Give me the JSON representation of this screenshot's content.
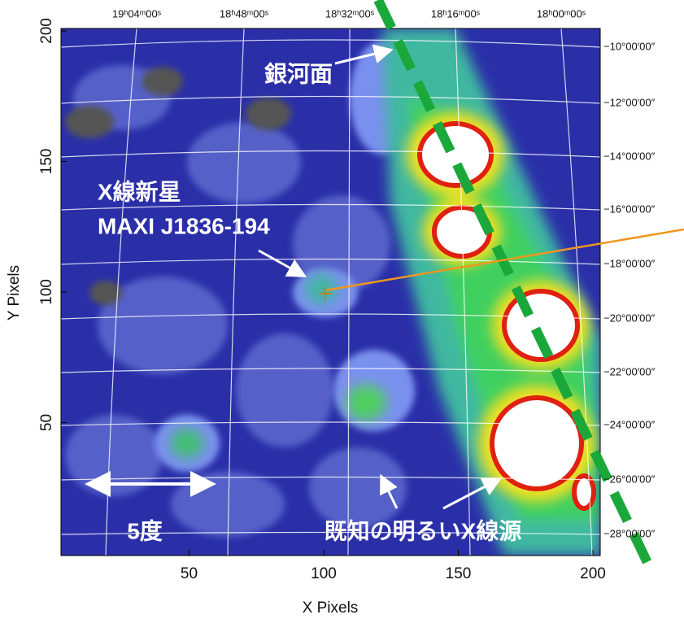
{
  "chart_data": {
    "type": "image",
    "xlabel": "X Pixels",
    "ylabel": "Y Pixels",
    "xlim": [
      0,
      200
    ],
    "ylim": [
      0,
      200
    ],
    "xticks": [
      50,
      100,
      150,
      200
    ],
    "yticks": [
      50,
      100,
      150,
      200
    ],
    "ra_labels": [
      "19ʰ04ᵐ00ˢ",
      "18ʰ48ᵐ00ˢ",
      "18ʰ32ᵐ00ˢ",
      "18ʰ16ᵐ00ˢ",
      "18ʰ00ᵐ00ˢ"
    ],
    "dec_labels": [
      "−10°00′00″",
      "−12°00′00″",
      "−14°00′00″",
      "−16°00′00″",
      "−18°00′00″",
      "−20°00′00″",
      "−22°00′00″",
      "−24°00′00″",
      "−26°00′00″",
      "−28°00′00″"
    ],
    "annotations": {
      "galactic_plane": "銀河面",
      "nova_title": "X線新星",
      "nova_name": "MAXI J1836-194",
      "known_sources": "既知の明るいX線源",
      "scale": "5度"
    }
  }
}
